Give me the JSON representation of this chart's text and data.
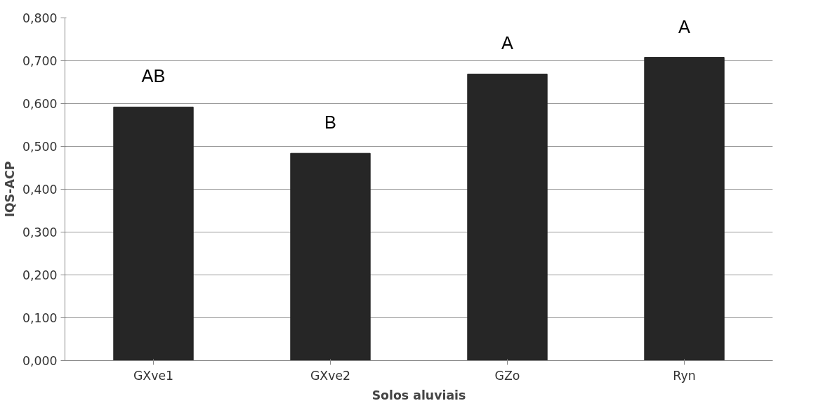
{
  "chart_data": {
    "type": "bar",
    "xlabel": "Solos aluviais",
    "ylabel": "IQS-ACP",
    "categories": [
      "GXve1",
      "GXve2",
      "GZo",
      "Ryn"
    ],
    "values": [
      0.592,
      0.484,
      0.669,
      0.708
    ],
    "color": "#262626",
    "ylim": [
      0,
      0.8
    ],
    "yticks": [
      {
        "value": 0,
        "label": "0,000"
      },
      {
        "value": 0.1,
        "label": "0,100"
      },
      {
        "value": 0.2,
        "label": "0,200"
      },
      {
        "value": 0.3,
        "label": "0,300"
      },
      {
        "value": 0.4,
        "label": "0,400"
      },
      {
        "value": 0.5,
        "label": "0,500"
      },
      {
        "value": 0.6,
        "label": "0,600"
      },
      {
        "value": 0.7,
        "label": "0,700"
      },
      {
        "value": 0.8,
        "label": "0,800"
      }
    ],
    "grid": "y",
    "annotations": [
      "AB",
      "B",
      "A",
      "A"
    ]
  }
}
